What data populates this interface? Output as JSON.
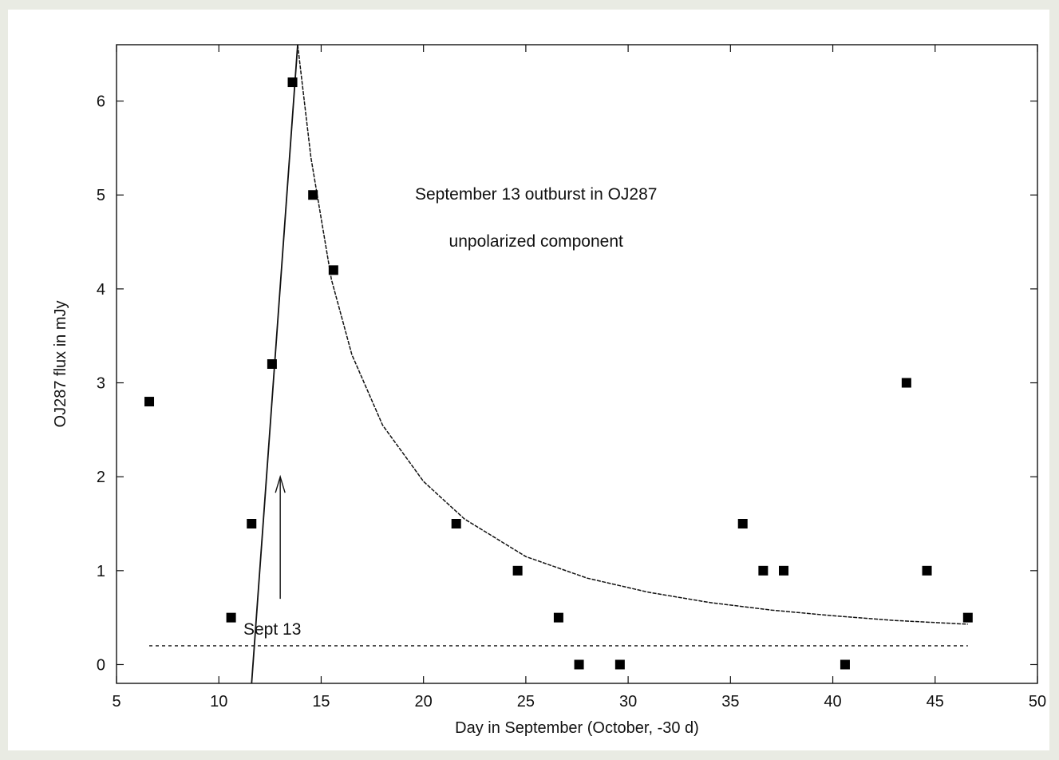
{
  "chart_data": {
    "type": "scatter",
    "xlabel": "Day in September (October, -30 d)",
    "ylabel": "OJ287 flux in mJy",
    "xlim": [
      5,
      50
    ],
    "ylim": [
      -0.2,
      6.6
    ],
    "x_ticks": [
      5,
      10,
      15,
      20,
      25,
      30,
      35,
      40,
      45,
      50
    ],
    "y_ticks": [
      0,
      1,
      2,
      3,
      4,
      5,
      6
    ],
    "grid": false,
    "annotations": {
      "title_line1": "September 13 outburst in OJ287",
      "title_line2": "unpolarized component",
      "arrow_label": "Sept 13",
      "arrow_x": 13,
      "arrow_from_y": 0.7,
      "arrow_to_y": 2.0
    },
    "series": [
      {
        "kind": "points",
        "x": [
          6.6,
          10.6,
          11.6,
          12.6,
          13.6,
          14.6,
          15.6,
          21.6,
          24.6,
          26.6,
          27.6,
          29.6,
          35.6,
          36.6,
          37.6,
          40.6,
          43.6,
          44.6,
          46.6
        ],
        "y": [
          2.8,
          0.5,
          1.5,
          3.2,
          6.2,
          5.0,
          4.2,
          1.5,
          1.0,
          0.5,
          0.0,
          0.0,
          1.5,
          1.0,
          1.0,
          0.0,
          3.0,
          1.0,
          0.5
        ]
      },
      {
        "kind": "rise-line",
        "x": [
          11.6,
          13.85
        ],
        "y": [
          -0.2,
          6.6
        ]
      },
      {
        "kind": "decay-curve",
        "x": [
          13.85,
          14.5,
          15.5,
          16.5,
          18,
          20,
          22,
          25,
          28,
          31,
          34,
          37,
          40,
          43,
          46.6
        ],
        "y": [
          6.6,
          5.4,
          4.1,
          3.3,
          2.55,
          1.95,
          1.55,
          1.15,
          0.92,
          0.77,
          0.66,
          0.58,
          0.52,
          0.47,
          0.43
        ]
      },
      {
        "kind": "baseline",
        "x": [
          6.6,
          46.6
        ],
        "y": [
          0.2,
          0.2
        ]
      }
    ]
  }
}
